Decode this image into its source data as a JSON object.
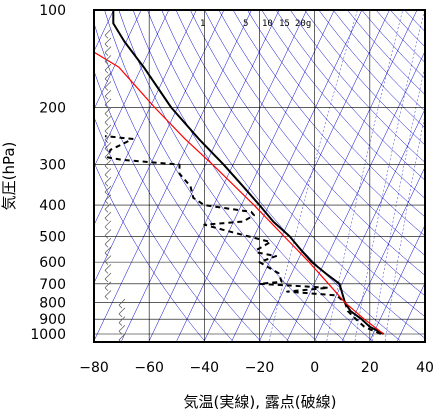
{
  "chart_data": {
    "type": "line",
    "subtype": "skew-t log-p upper-air sounding",
    "xlabel": "気温(実線), 露点(破線)",
    "ylabel": "気圧(hPa)",
    "x_unit": "°C",
    "xlim": [
      -80,
      40
    ],
    "ylim": [
      1050,
      100
    ],
    "y_scale": "log",
    "x_ticks": [
      -80,
      -60,
      -40,
      -20,
      0,
      20,
      40
    ],
    "y_ticks": [
      100,
      200,
      300,
      400,
      500,
      600,
      700,
      800,
      900,
      1000
    ],
    "grid": true,
    "mixing_ratio_labels": [
      "1",
      "5",
      "10",
      "15",
      "20g"
    ],
    "mixing_ratio_values": [
      1,
      5,
      10,
      15,
      20
    ],
    "colors": {
      "temperature": "#000000",
      "dewpoint": "#000000",
      "parcel": "#ff0000",
      "background_lines": "#0000cc",
      "grid": "#000000"
    },
    "series": [
      {
        "name": "気温",
        "style": "solid",
        "points": [
          {
            "p": 1000,
            "t": 25
          },
          {
            "p": 950,
            "t": 20
          },
          {
            "p": 900,
            "t": 17
          },
          {
            "p": 850,
            "t": 13
          },
          {
            "p": 800,
            "t": 11
          },
          {
            "p": 750,
            "t": 10
          },
          {
            "p": 700,
            "t": 9
          },
          {
            "p": 650,
            "t": 4
          },
          {
            "p": 600,
            "t": -1
          },
          {
            "p": 550,
            "t": -5
          },
          {
            "p": 500,
            "t": -9
          },
          {
            "p": 450,
            "t": -15
          },
          {
            "p": 400,
            "t": -20
          },
          {
            "p": 350,
            "t": -26
          },
          {
            "p": 300,
            "t": -33
          },
          {
            "p": 250,
            "t": -42
          },
          {
            "p": 200,
            "t": -52
          },
          {
            "p": 150,
            "t": -62
          },
          {
            "p": 125,
            "t": -69
          },
          {
            "p": 110,
            "t": -73
          },
          {
            "p": 100,
            "t": -73
          }
        ]
      },
      {
        "name": "露点",
        "style": "dashed",
        "points": [
          {
            "p": 1000,
            "t": 24
          },
          {
            "p": 950,
            "t": 18
          },
          {
            "p": 900,
            "t": 15
          },
          {
            "p": 850,
            "t": 12
          },
          {
            "p": 800,
            "t": 11
          },
          {
            "p": 760,
            "t": 8
          },
          {
            "p": 740,
            "t": -10
          },
          {
            "p": 720,
            "t": 5
          },
          {
            "p": 700,
            "t": -20
          },
          {
            "p": 690,
            "t": -12
          },
          {
            "p": 650,
            "t": -13
          },
          {
            "p": 600,
            "t": -20
          },
          {
            "p": 575,
            "t": -14
          },
          {
            "p": 560,
            "t": -21
          },
          {
            "p": 550,
            "t": -21
          },
          {
            "p": 520,
            "t": -16
          },
          {
            "p": 480,
            "t": -32
          },
          {
            "p": 460,
            "t": -40
          },
          {
            "p": 450,
            "t": -26
          },
          {
            "p": 430,
            "t": -22
          },
          {
            "p": 420,
            "t": -23
          },
          {
            "p": 400,
            "t": -40
          },
          {
            "p": 380,
            "t": -44
          },
          {
            "p": 350,
            "t": -45
          },
          {
            "p": 320,
            "t": -49
          },
          {
            "p": 300,
            "t": -49
          },
          {
            "p": 290,
            "t": -70
          },
          {
            "p": 285,
            "t": -75
          },
          {
            "p": 270,
            "t": -74
          },
          {
            "p": 260,
            "t": -70
          },
          {
            "p": 250,
            "t": -66
          },
          {
            "p": 245,
            "t": -76
          }
        ]
      },
      {
        "name": "parcel",
        "style": "solid",
        "points": [
          {
            "p": 1000,
            "t": 25
          },
          {
            "p": 900,
            "t": 18
          },
          {
            "p": 800,
            "t": 11
          },
          {
            "p": 700,
            "t": 5
          },
          {
            "p": 600,
            "t": -2
          },
          {
            "p": 500,
            "t": -11
          },
          {
            "p": 400,
            "t": -22
          },
          {
            "p": 300,
            "t": -37
          },
          {
            "p": 250,
            "t": -47
          },
          {
            "p": 200,
            "t": -58
          },
          {
            "p": 150,
            "t": -71
          },
          {
            "p": 135,
            "t": -80
          }
        ]
      }
    ]
  }
}
